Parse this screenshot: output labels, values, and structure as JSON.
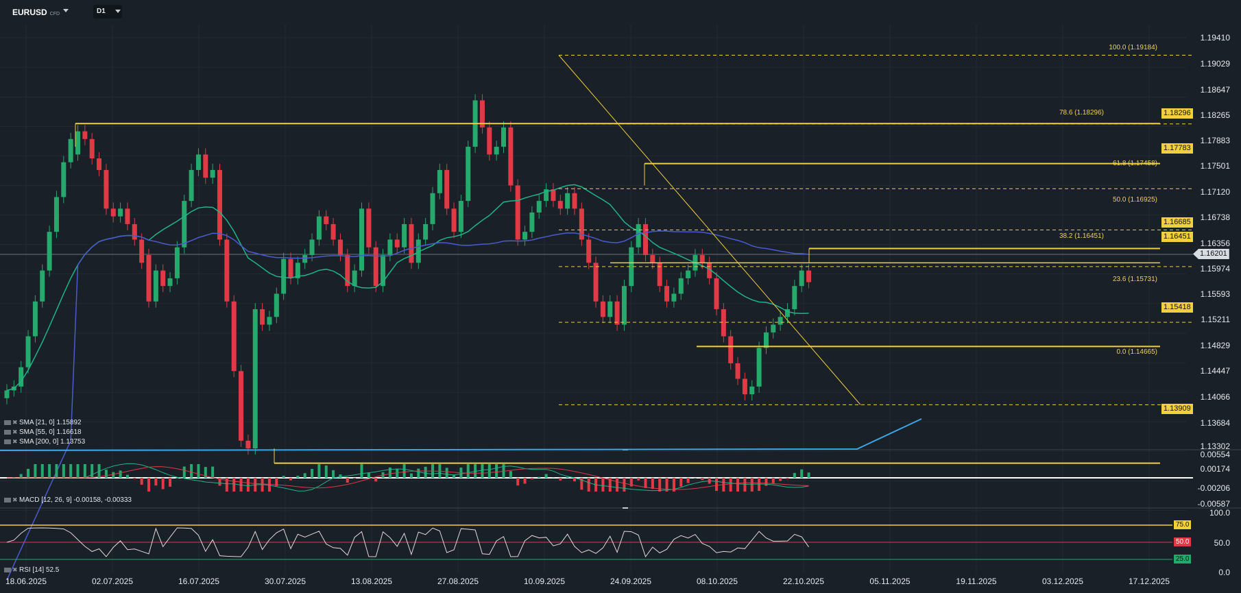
{
  "header": {
    "symbol": "EURUSD",
    "instrument_type": "CFD",
    "timeframe": "D1"
  },
  "price_axis": [
    "1.19410",
    "1.19029",
    "1.18647",
    "1.18265",
    "1.17883",
    "1.17501",
    "1.17120",
    "1.16738",
    "1.16356",
    "1.15974",
    "1.15593",
    "1.15211",
    "1.14829",
    "1.14447",
    "1.14066",
    "1.13684",
    "1.13302"
  ],
  "current_price": "1.16201",
  "macd_axis": [
    "0.00554",
    "0.00174",
    "-0.00206",
    "-0.00587"
  ],
  "rsi_axis": [
    "100.0",
    "50.0",
    "0.0"
  ],
  "date_axis": [
    "18.06.2025",
    "02.07.2025",
    "16.07.2025",
    "30.07.2025",
    "13.08.2025",
    "27.08.2025",
    "10.09.2025",
    "24.09.2025",
    "08.10.2025",
    "22.10.2025",
    "05.11.2025",
    "19.11.2025",
    "03.12.2025",
    "17.12.2025"
  ],
  "indicators": {
    "sma21": "SMA [21, 0] 1.15892",
    "sma55": "SMA [55, 0] 1.16618",
    "sma200": "SMA [200, 0] 1.13753",
    "macd": "MACD [12, 26, 9] -0.00158, -0.00333",
    "rsi": "RSI [14] 52.5"
  },
  "horizontal_levels": [
    "1.17783",
    "1.16685",
    "1.15418",
    "1.13909"
  ],
  "fibonacci_levels": [
    {
      "label": "100.0 (1.19184)",
      "value": 1.19184
    },
    {
      "label": "78.6 (1.18296)",
      "value": 1.18296
    },
    {
      "label": "61.8 (1.17458)",
      "value": 1.17458
    },
    {
      "label": "50.0 (1.16925)",
      "value": 1.16925
    },
    {
      "label": "38.2 (1.16451)",
      "value": 1.16451
    },
    {
      "label": "23.6 (1.15731)",
      "value": 1.15731
    },
    {
      "label": "0.0 (1.14665)",
      "value": 1.14665
    }
  ],
  "fib_tag_78": "1.18296",
  "fib_tag_38": "1.16451",
  "rsi_levels": [
    "75.0",
    "50.0",
    "25.0"
  ],
  "colors": {
    "bull": "#26a96c",
    "bear": "#e03a46",
    "sma21": "#1fb58a",
    "sma55": "#4b5bd0",
    "sma200": "#3aa6e8",
    "level": "#f2cf3c",
    "macd_line": "#1fb58a",
    "signal_line": "#e03a46"
  }
}
